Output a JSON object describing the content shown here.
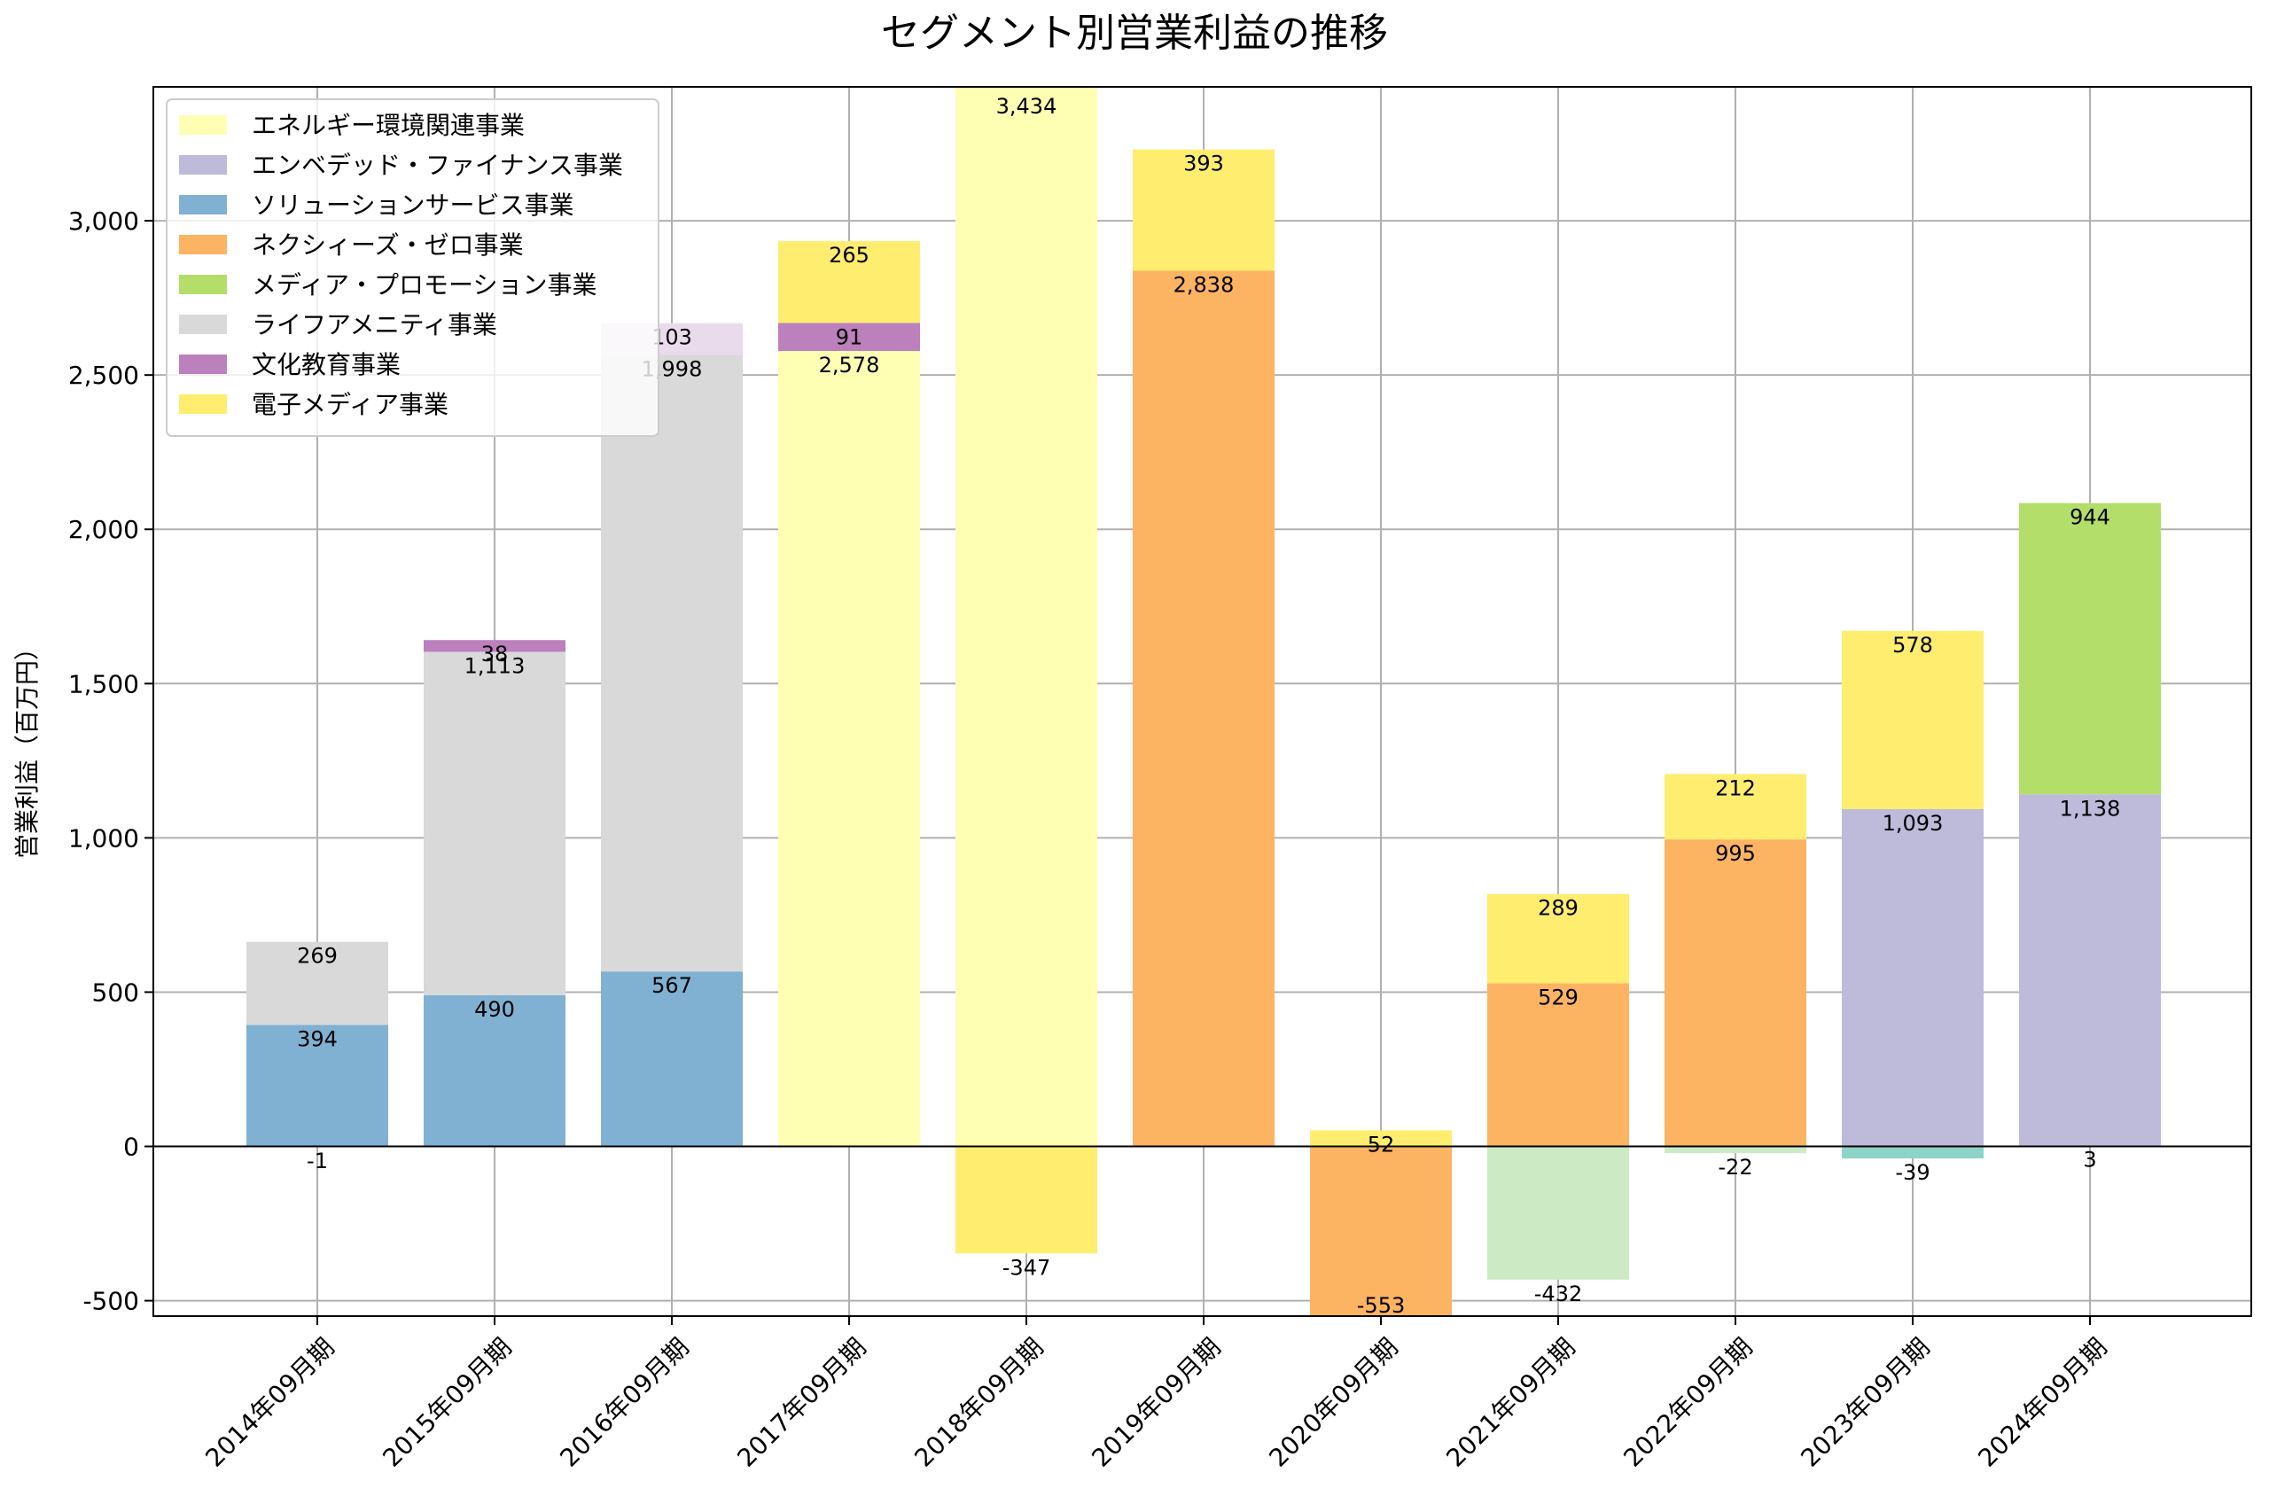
{
  "chart_data": {
    "type": "bar",
    "stacked": true,
    "title": "セグメント別営業利益の推移",
    "xlabel": "",
    "ylabel": "営業利益（百万円）",
    "ylim": [
      -550,
      3434
    ],
    "yticks": [
      -500,
      0,
      500,
      1000,
      1500,
      2000,
      2500,
      3000
    ],
    "ytick_labels": [
      "-500",
      "0",
      "500",
      "1,000",
      "1,500",
      "2,000",
      "2,500",
      "3,000"
    ],
    "grid": true,
    "legend_position": "top-left",
    "categories": [
      "2014年09月期",
      "2015年09月期",
      "2016年09月期",
      "2017年09月期",
      "2018年09月期",
      "2019年09月期",
      "2020年09月期",
      "2021年09月期",
      "2022年09月期",
      "2023年09月期",
      "2024年09月期"
    ],
    "segments": [
      [
        {
          "value": -1,
          "label": "-1",
          "color": "#66c2a5",
          "alpha": 0.6
        },
        {
          "value": 394,
          "label": "394",
          "color": "#80b1d3"
        },
        {
          "value": 269,
          "label": "269",
          "color": "#d9d9d9"
        }
      ],
      [
        {
          "value": 490,
          "label": "490",
          "color": "#80b1d3"
        },
        {
          "value": 1113,
          "label": "1,113",
          "color": "#d9d9d9"
        },
        {
          "value": 38,
          "label": "38",
          "color": "#bc80bd"
        }
      ],
      [
        {
          "value": 567,
          "label": "567",
          "color": "#80b1d3"
        },
        {
          "value": 1998,
          "label": "1,998",
          "color": "#d9d9d9"
        },
        {
          "value": 103,
          "label": "103",
          "color": "#eadbec"
        }
      ],
      [
        {
          "value": 2578,
          "label": "2,578",
          "color": "#ffffb3"
        },
        {
          "value": 91,
          "label": "91",
          "color": "#bc80bd"
        },
        {
          "value": 265,
          "label": "265",
          "color": "#ffed6f"
        }
      ],
      [
        {
          "value": 3434,
          "label": "3,434",
          "color": "#ffffb3"
        },
        {
          "value": -347,
          "label": "-347",
          "color": "#ffed6f"
        }
      ],
      [
        {
          "value": 2838,
          "label": "2,838",
          "color": "#fdb462"
        },
        {
          "value": 393,
          "label": "393",
          "color": "#ffed6f"
        }
      ],
      [
        {
          "value": -553,
          "label": "-553",
          "color": "#fdb462"
        },
        {
          "value": 52,
          "label": "52",
          "color": "#ffed6f"
        }
      ],
      [
        {
          "value": -432,
          "label": "-432",
          "color": "#ccebc5"
        },
        {
          "value": 529,
          "label": "529",
          "color": "#fdb462"
        },
        {
          "value": 289,
          "label": "289",
          "color": "#ffed6f"
        }
      ],
      [
        {
          "value": -22,
          "label": "-22",
          "color": "#ccebc5"
        },
        {
          "value": 995,
          "label": "995",
          "color": "#fdb462"
        },
        {
          "value": 212,
          "label": "212",
          "color": "#ffed6f"
        }
      ],
      [
        {
          "value": -39,
          "label": "-39",
          "color": "#8dd3c7"
        },
        {
          "value": 1093,
          "label": "1,093",
          "color": "#bebada"
        },
        {
          "value": 578,
          "label": "578",
          "color": "#ffed6f"
        }
      ],
      [
        {
          "value": 3,
          "label": "3",
          "color": "#d9d9d9"
        },
        {
          "value": 1138,
          "label": "1,138",
          "color": "#bebada"
        },
        {
          "value": 944,
          "label": "944",
          "color": "#b3de69"
        }
      ]
    ],
    "legend": [
      {
        "name": "エネルギー環境関連事業",
        "color": "#ffffb3"
      },
      {
        "name": "エンベデッド・ファイナンス事業",
        "color": "#bebada"
      },
      {
        "name": "ソリューションサービス事業",
        "color": "#80b1d3"
      },
      {
        "name": "ネクシィーズ・ゼロ事業",
        "color": "#fdb462"
      },
      {
        "name": "メディア・プロモーション事業",
        "color": "#b3de69"
      },
      {
        "name": "ライフアメニティ事業",
        "color": "#d9d9d9"
      },
      {
        "name": "文化教育事業",
        "color": "#bc80bd"
      },
      {
        "name": "電子メディア事業",
        "color": "#ffed6f"
      }
    ]
  }
}
